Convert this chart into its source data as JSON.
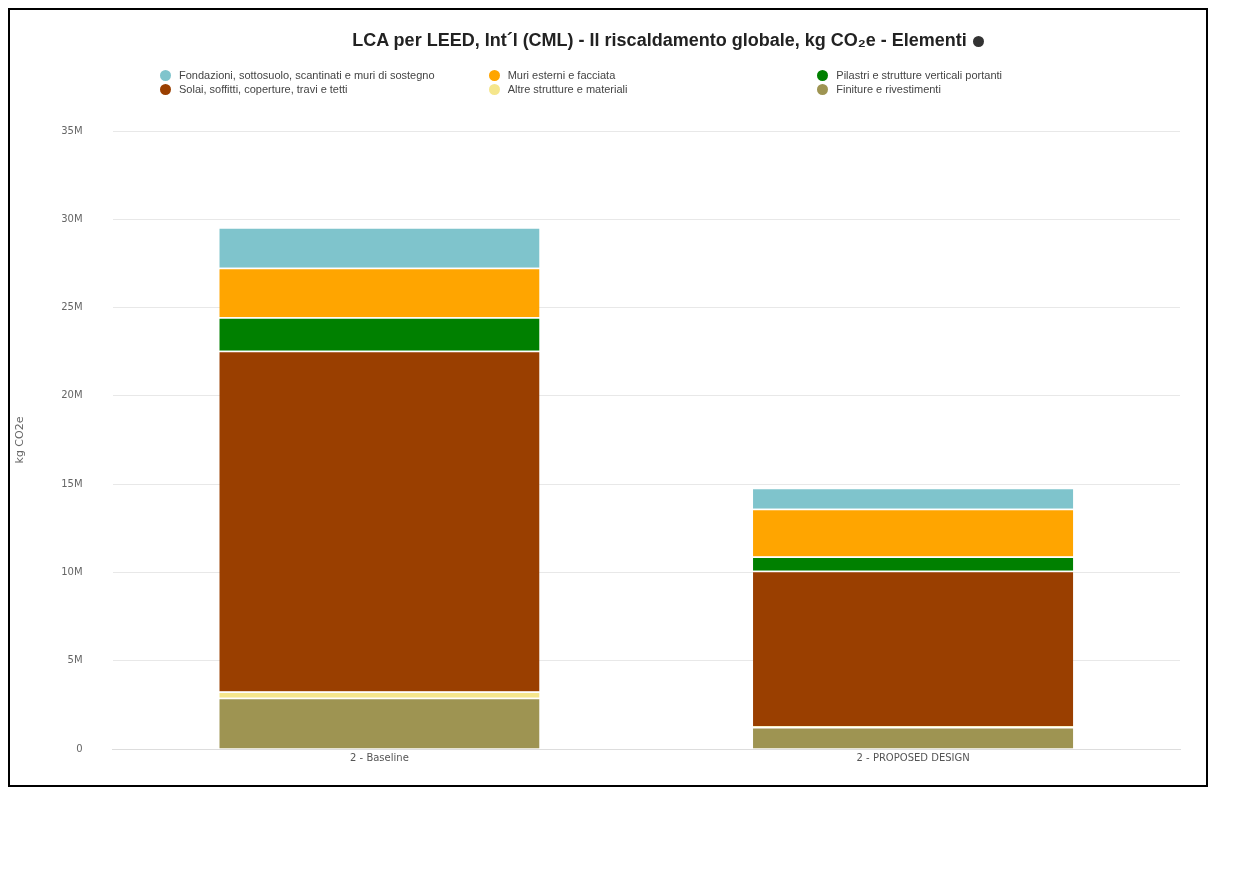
{
  "chart_data": {
    "type": "bar",
    "title": "LCA per LEED, Int´l (CML) - Il riscaldamento globale, kg CO₂e - Elementi",
    "ylabel": "kg CO2e",
    "categories": [
      "2 - Baseline",
      "2 - PROPOSED DESIGN"
    ],
    "stacked": true,
    "legend": "top",
    "grid": "y",
    "ylim": [
      0,
      35000000
    ],
    "yticks": [
      {
        "value": 0,
        "label": "0"
      },
      {
        "value": 5000000,
        "label": "5M"
      },
      {
        "value": 10000000,
        "label": "10M"
      },
      {
        "value": 15000000,
        "label": "15M"
      },
      {
        "value": 20000000,
        "label": "20M"
      },
      {
        "value": 25000000,
        "label": "25M"
      },
      {
        "value": 30000000,
        "label": "30M"
      },
      {
        "value": 35000000,
        "label": "35M"
      }
    ],
    "series": [
      {
        "name": "Finiture e rivestimenti",
        "color": "#9e9452",
        "values": [
          2900000,
          1250000
        ]
      },
      {
        "name": "Altre strutture e materiali",
        "color": "#f5e68c",
        "values": [
          350000,
          50000
        ]
      },
      {
        "name": "Solai, soffitti, coperture, travi e tetti",
        "color": "#9a3f00",
        "values": [
          19300000,
          8800000
        ]
      },
      {
        "name": "Pilastri e strutture verticali portanti",
        "color": "#008000",
        "values": [
          1900000,
          800000
        ]
      },
      {
        "name": "Muri esterni e facciata",
        "color": "#ffa500",
        "values": [
          2800000,
          2700000
        ]
      },
      {
        "name": "Fondazioni, sottosuolo, scantinati e muri di sostegno",
        "color": "#7fc4cc",
        "values": [
          2300000,
          1200000
        ]
      }
    ]
  }
}
